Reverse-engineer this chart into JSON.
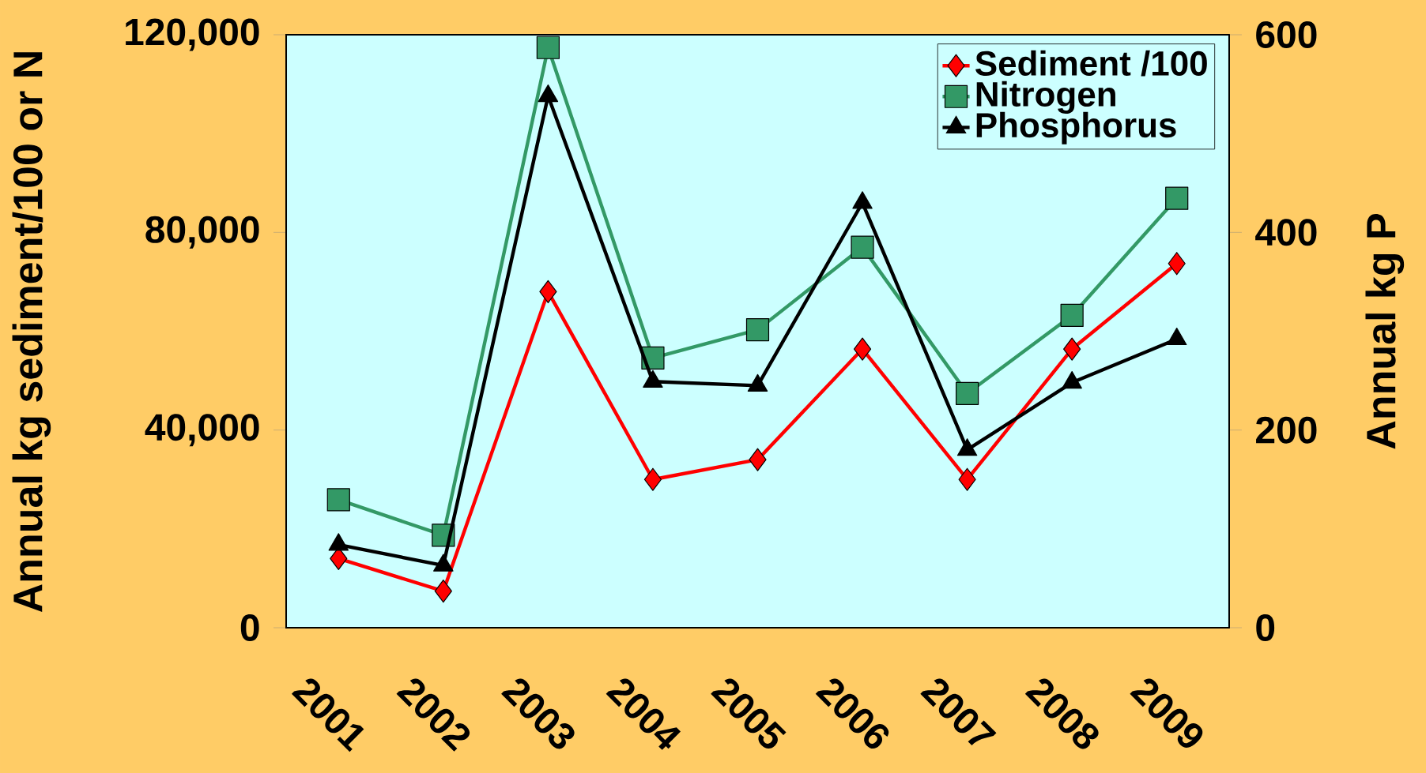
{
  "chart_data": {
    "type": "line",
    "ylabel": "Annual kg sediment/100 or N",
    "y2label": "Annual kg P",
    "categories": [
      "2001",
      "2002",
      "2003",
      "2004",
      "2005",
      "2006",
      "2007",
      "2008",
      "2009"
    ],
    "series": [
      {
        "name": "Sediment /100",
        "color": "#ff0000",
        "marker": "diamond",
        "values": [
          14000,
          7400,
          68000,
          30000,
          34000,
          56400,
          30000,
          56400,
          73700
        ]
      },
      {
        "name": "Nitrogen",
        "color": "#339966",
        "marker": "square",
        "values": [
          25900,
          18700,
          117400,
          54600,
          60300,
          77000,
          47400,
          63200,
          86900
        ]
      },
      {
        "name": "Phosphorus",
        "color": "#000000",
        "marker": "triangle",
        "axis": "y2",
        "values": [
          84,
          63,
          538,
          249,
          245,
          430,
          180,
          248,
          292
        ]
      }
    ],
    "ylim": [
      0,
      120000
    ],
    "yticks": [
      0,
      {
        "value": 40000,
        "label": "40,000"
      },
      {
        "value": 80000,
        "label": "80,000"
      },
      {
        "value": 120000,
        "label": "120,000"
      }
    ],
    "y2lim": [
      0,
      600
    ],
    "y2ticks": [
      0,
      200,
      400,
      600
    ],
    "legend": "top right",
    "grid": false,
    "line_style": "solid"
  }
}
